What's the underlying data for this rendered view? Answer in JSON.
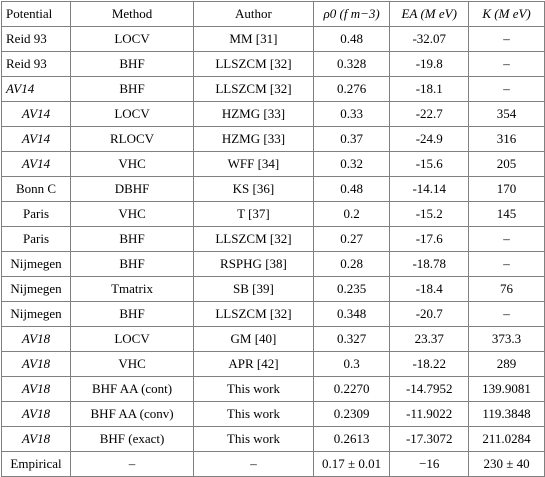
{
  "table": {
    "headers": [
      {
        "text": "Potential",
        "italic": false,
        "align": "left"
      },
      {
        "text": "Method",
        "italic": false,
        "align": "center"
      },
      {
        "text": "Author",
        "italic": false,
        "align": "center"
      },
      {
        "text": "ρ0 (f m−3)",
        "italic": true,
        "align": "center"
      },
      {
        "text": "EA (M eV)",
        "italic": true,
        "align": "center"
      },
      {
        "text": "K (M eV)",
        "italic": true,
        "align": "center"
      }
    ],
    "rows": [
      {
        "potential": "Reid 93",
        "potential_italic": false,
        "potential_align": "left",
        "method": "LOCV",
        "author": "MM [31]",
        "rho0": "0.48",
        "ea": "-32.07",
        "k": "–"
      },
      {
        "potential": "Reid 93",
        "potential_italic": false,
        "potential_align": "left",
        "method": "BHF",
        "author": "LLSZCM [32]",
        "rho0": "0.328",
        "ea": "-19.8",
        "k": "–"
      },
      {
        "potential": "AV14",
        "potential_italic": true,
        "potential_align": "left",
        "method": "BHF",
        "author": "LLSZCM [32]",
        "rho0": "0.276",
        "ea": "-18.1",
        "k": "–"
      },
      {
        "potential": "AV14",
        "potential_italic": true,
        "potential_align": "center",
        "method": "LOCV",
        "author": "HZMG [33]",
        "rho0": "0.33",
        "ea": "-22.7",
        "k": "354"
      },
      {
        "potential": "AV14",
        "potential_italic": true,
        "potential_align": "center",
        "method": "RLOCV",
        "author": "HZMG [33]",
        "rho0": "0.37",
        "ea": "-24.9",
        "k": "316"
      },
      {
        "potential": "AV14",
        "potential_italic": true,
        "potential_align": "center",
        "method": "VHC",
        "author": "WFF [34]",
        "rho0": "0.32",
        "ea": "-15.6",
        "k": "205"
      },
      {
        "potential": "Bonn C",
        "potential_italic": false,
        "potential_align": "center",
        "method": "DBHF",
        "author": "KS [36]",
        "rho0": "0.48",
        "ea": "-14.14",
        "k": "170"
      },
      {
        "potential": "Paris",
        "potential_italic": false,
        "potential_align": "center",
        "method": "VHC",
        "author": "T [37]",
        "rho0": "0.2",
        "ea": "-15.2",
        "k": "145"
      },
      {
        "potential": "Paris",
        "potential_italic": false,
        "potential_align": "center",
        "method": "BHF",
        "author": "LLSZCM [32]",
        "rho0": "0.27",
        "ea": "-17.6",
        "k": "–"
      },
      {
        "potential": "Nijmegen",
        "potential_italic": false,
        "potential_align": "center",
        "method": "BHF",
        "author": "RSPHG [38]",
        "rho0": "0.28",
        "ea": "-18.78",
        "k": "–"
      },
      {
        "potential": "Nijmegen",
        "potential_italic": false,
        "potential_align": "center",
        "method": "Tmatrix",
        "author": "SB [39]",
        "rho0": "0.235",
        "ea": "-18.4",
        "k": "76"
      },
      {
        "potential": "Nijmegen",
        "potential_italic": false,
        "potential_align": "center",
        "method": "BHF",
        "author": "LLSZCM [32]",
        "rho0": "0.348",
        "ea": "-20.7",
        "k": "–"
      },
      {
        "potential": "AV18",
        "potential_italic": true,
        "potential_align": "center",
        "method": "LOCV",
        "author": "GM [40]",
        "rho0": "0.327",
        "ea": "23.37",
        "k": "373.3"
      },
      {
        "potential": "AV18",
        "potential_italic": true,
        "potential_align": "center",
        "method": "VHC",
        "author": "APR [42]",
        "rho0": "0.3",
        "ea": "-18.22",
        "k": "289"
      },
      {
        "potential": "AV18",
        "potential_italic": true,
        "potential_align": "center",
        "method": "BHF AA (cont)",
        "author": "This work",
        "rho0": "0.2270",
        "ea": "-14.7952",
        "k": "139.9081"
      },
      {
        "potential": "AV18",
        "potential_italic": true,
        "potential_align": "center",
        "method": "BHF AA (conv)",
        "author": "This work",
        "rho0": "0.2309",
        "ea": "-11.9022",
        "k": "119.3848"
      },
      {
        "potential": "AV18",
        "potential_italic": true,
        "potential_align": "center",
        "method": "BHF (exact)",
        "author": "This work",
        "rho0": "0.2613",
        "ea": "-17.3072",
        "k": "211.0284"
      },
      {
        "potential": "Empirical",
        "potential_italic": false,
        "potential_align": "center",
        "method": "–",
        "author": "–",
        "rho0": "0.17 ± 0.01",
        "ea": "−16",
        "k": "230 ± 40"
      }
    ]
  }
}
